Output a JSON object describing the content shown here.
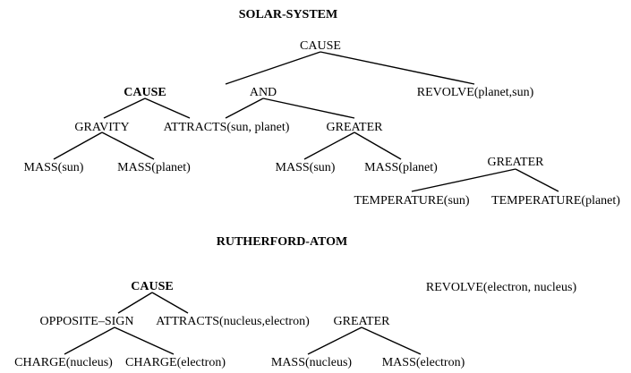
{
  "diagrams": [
    {
      "title": "SOLAR-SYSTEM",
      "nodes": {
        "cause_root": "CAUSE",
        "cause_sub": "CAUSE",
        "and": "AND",
        "revolve": "REVOLVE(planet,sun)",
        "gravity": "GRAVITY",
        "attracts": "ATTRACTS(sun, planet)",
        "greater_mass": "GREATER",
        "mass_sun_left": "MASS(sun)",
        "mass_planet_left": "MASS(planet)",
        "mass_sun_right": "MASS(sun)",
        "mass_planet_right": "MASS(planet)",
        "greater_temp": "GREATER",
        "temp_sun": "TEMPERATURE(sun)",
        "temp_planet": "TEMPERATURE(planet)"
      }
    },
    {
      "title": "RUTHERFORD-ATOM",
      "nodes": {
        "cause": "CAUSE",
        "revolve": "REVOLVE(electron, nucleus)",
        "opposite_sign": "OPPOSITE–SIGN",
        "attracts": "ATTRACTS(nucleus,electron)",
        "greater": "GREATER",
        "charge_nucleus": "CHARGE(nucleus)",
        "charge_electron": "CHARGE(electron)",
        "mass_nucleus": "MASS(nucleus)",
        "mass_electron": "MASS(electron)"
      }
    }
  ]
}
